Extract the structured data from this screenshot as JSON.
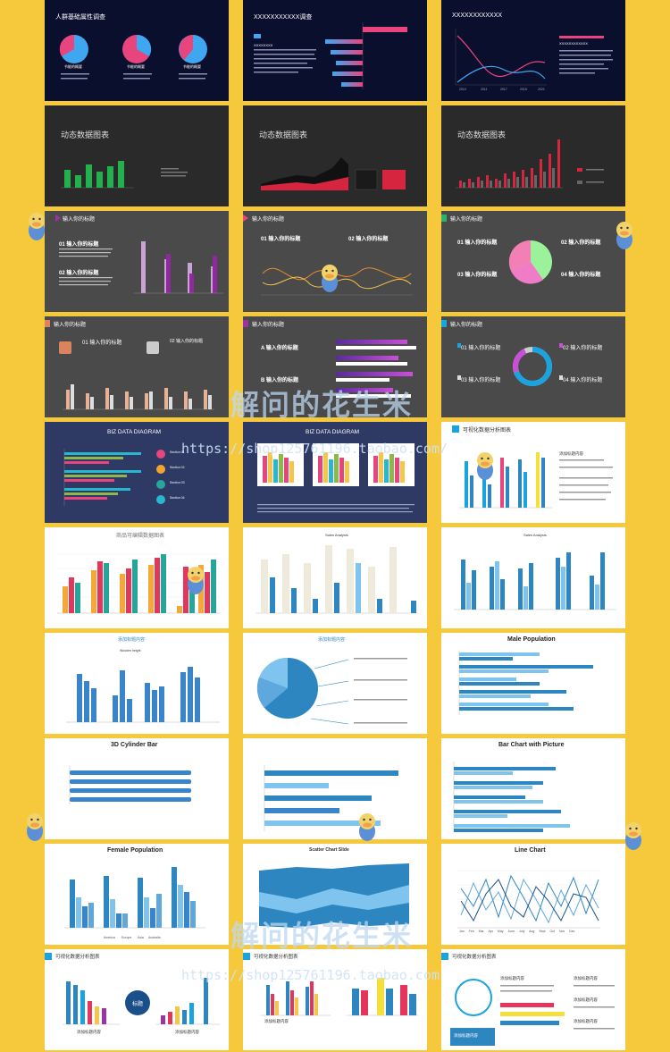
{
  "watermark": {
    "text": "解问的花生米",
    "url": "https://shop125761196.taobao.com/",
    "url_partial": "https://shop125761196.taobao.com"
  },
  "slides": {
    "r1c1": {
      "title": "人群基础属性调查",
      "labels": [
        "节能的概要",
        "节能的概要",
        "节能的概要"
      ]
    },
    "r1c2": {
      "title": "XXXXXXXXXXX调查",
      "subtitle": "XXXXXXXX"
    },
    "r1c3": {
      "title": "XXXXXXXXXXXX",
      "subtitle": "XXXXXXXXXXXX",
      "years": [
        "2010",
        "2011",
        "2017",
        "2015",
        "2021"
      ]
    },
    "r2c1": {
      "title": "动态数据图表"
    },
    "r2c2": {
      "title": "动态数据图表"
    },
    "r2c3": {
      "title": "动态数据图表"
    },
    "r3c1": {
      "title": "输入你的标题",
      "items": [
        "01 输入你的标题",
        "02 输入你的标题"
      ]
    },
    "r3c2": {
      "title": "输入你的标题",
      "items": [
        "01 输入你的标题",
        "02 输入你的标题"
      ]
    },
    "r3c3": {
      "title": "输入你的标题",
      "items": [
        "01 输入你的标题",
        "02 输入你的标题",
        "03 输入你的标题",
        "04 输入你的标题"
      ]
    },
    "r4c1": {
      "title": "输入你的标题",
      "items": [
        "01 输入你的标题",
        "02 输入你的标题"
      ]
    },
    "r4c2": {
      "title": "输入你的标题",
      "items": [
        "A 输入你的标题",
        "B 输入你的标题"
      ]
    },
    "r4c3": {
      "title": "输入你的标题",
      "items": [
        "01 输入你的标题",
        "02 输入你的标题",
        "03 输入你的标题",
        "04 输入你的标题"
      ]
    },
    "r5c1": {
      "title": "BIZ DATA DIAGRAM",
      "items": [
        "Section 01",
        "Section 02",
        "Section 03",
        "Section 04"
      ]
    },
    "r5c2": {
      "title": "BIZ DATA DIAGRAM"
    },
    "r5c3": {
      "title": "可视化数据分析图表",
      "label": "添加标题内容"
    },
    "r6c1": {
      "title": "商品可编辑数据图表"
    },
    "r6c2": {
      "title": "Sales Analysis"
    },
    "r6c3": {
      "title": "Sales Analysis"
    },
    "r7c1": {
      "title": "添加标题内容",
      "subtitle": "Wooden height"
    },
    "r7c2": {
      "title": "添加标题内容"
    },
    "r7c3": {
      "title": "Male Population"
    },
    "r8c1": {
      "title": "3D Cylinder Bar"
    },
    "r8c2": {
      "title": ""
    },
    "r8c3": {
      "title": "Bar Chart with Picture"
    },
    "r9c1": {
      "title": "Female Population",
      "legend": [
        "America",
        "Europe",
        "Asia",
        "Australia"
      ]
    },
    "r9c2": {
      "title": "Scatter Chart Slide"
    },
    "r9c3": {
      "title": "Line Chart",
      "months": [
        "Jan",
        "Feb",
        "Mar",
        "Apr",
        "May",
        "June",
        "July",
        "Aug",
        "Sept",
        "Oct",
        "Nov",
        "Dec"
      ]
    },
    "r10c1": {
      "title": "可视化数据分析图表",
      "center": "标题",
      "label": "添加标题内容"
    },
    "r10c2": {
      "title": "可视化数据分析图表",
      "label": "添加标题内容"
    },
    "r10c3": {
      "title": "可视化数据分析图表",
      "label": "添加标题内容",
      "box": "添加标题内容"
    }
  },
  "colors": {
    "background": "#F6C93C",
    "dark_slide": "#0B0F2E",
    "gray_slide": "#4A4A4A",
    "navy_slide": "#2E3A64",
    "blue": "#2E86C1",
    "pink": "#E8457F",
    "accent": "#1BA3E0"
  }
}
